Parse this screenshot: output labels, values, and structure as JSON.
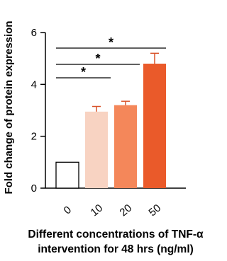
{
  "chart_data": {
    "type": "bar",
    "title": "",
    "ylabel": "Fold change of protein expression",
    "xlabel_lines": [
      "Different concentrations of TNF-α",
      "intervention for 48 hrs (ng/ml)"
    ],
    "categories": [
      "0",
      "10",
      "20",
      "50"
    ],
    "values": [
      1.0,
      2.95,
      3.2,
      4.8
    ],
    "errors": [
      0.0,
      0.2,
      0.15,
      0.4
    ],
    "colors": [
      "#ffffff",
      "#f8d3c2",
      "#f4875a",
      "#ea5a2a"
    ],
    "ylim": [
      0,
      6
    ],
    "yticks": [
      0,
      2,
      4,
      6
    ],
    "grid": false,
    "significance": [
      {
        "from": 0,
        "to": 1,
        "label": "*"
      },
      {
        "from": 0,
        "to": 2,
        "label": "*"
      },
      {
        "from": 0,
        "to": 3,
        "label": "*"
      }
    ]
  }
}
